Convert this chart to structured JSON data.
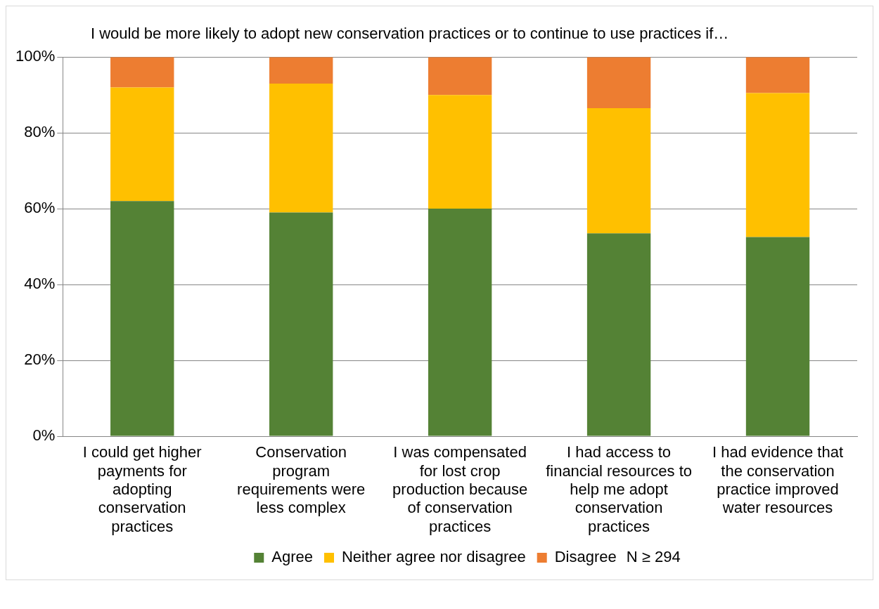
{
  "chart_data": {
    "type": "bar",
    "title": "I would be more likely to adopt new conservation practices or to continue to use practices if…",
    "categories": [
      "I could get higher payments for adopting conservation practices",
      "Conservation program requirements were less complex",
      "I was compensated for lost crop production because of conservation practices",
      "I had access to financial resources to help me adopt conservation practices",
      "I had evidence that the conservation practice improved water resources"
    ],
    "series": [
      {
        "name": "Agree",
        "color": "#548235",
        "values": [
          62,
          59,
          60,
          53.5,
          52.5
        ]
      },
      {
        "name": "Neither agree nor disagree",
        "color": "#ffc000",
        "values": [
          30,
          34,
          30,
          33,
          38
        ]
      },
      {
        "name": "Disagree",
        "color": "#ed7d31",
        "values": [
          8,
          7,
          10,
          13.5,
          9.5
        ]
      }
    ],
    "stacked": true,
    "ylim": [
      0,
      100
    ],
    "yticks": [
      {
        "value": 0,
        "label": "0%"
      },
      {
        "value": 20,
        "label": "20%"
      },
      {
        "value": 40,
        "label": "40%"
      },
      {
        "value": 60,
        "label": "60%"
      },
      {
        "value": 80,
        "label": "80%"
      },
      {
        "value": 100,
        "label": "100%"
      }
    ],
    "grid": "y",
    "legend": "bottom",
    "annotations": [
      "N ≥ 294"
    ]
  }
}
